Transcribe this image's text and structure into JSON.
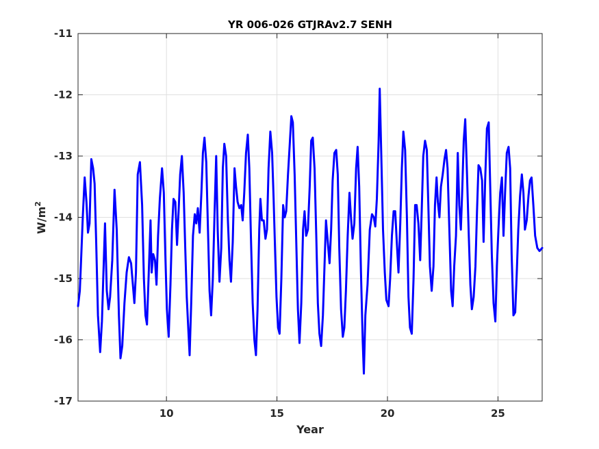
{
  "chart_data": {
    "type": "line",
    "title": "YR 006-026 GTJRAv2.7 SENH",
    "xlabel": "Year",
    "ylabel_base": "W/m",
    "ylabel_sup": "2",
    "xlim": [
      6.0,
      27.0
    ],
    "ylim": [
      -17,
      -11
    ],
    "xticks": [
      10,
      15,
      20,
      25
    ],
    "xtick_labels": [
      "10",
      "15",
      "20",
      "25"
    ],
    "yticks": [
      -17,
      -16,
      -15,
      -14,
      -13,
      -12,
      -11
    ],
    "ytick_labels": [
      "-17",
      "-16",
      "-15",
      "-14",
      "-13",
      "-12",
      "-11"
    ],
    "grid": true,
    "series_color": "#0000ff",
    "series": [
      {
        "points": [
          [
            6.0,
            -15.45
          ],
          [
            6.08,
            -15.2
          ],
          [
            6.15,
            -14.6
          ],
          [
            6.22,
            -13.95
          ],
          [
            6.3,
            -13.35
          ],
          [
            6.38,
            -13.75
          ],
          [
            6.45,
            -14.25
          ],
          [
            6.52,
            -14.1
          ],
          [
            6.6,
            -13.05
          ],
          [
            6.68,
            -13.2
          ],
          [
            6.75,
            -13.45
          ],
          [
            6.82,
            -14.4
          ],
          [
            6.9,
            -15.6
          ],
          [
            7.0,
            -16.2
          ],
          [
            7.08,
            -15.7
          ],
          [
            7.15,
            -14.9
          ],
          [
            7.22,
            -14.1
          ],
          [
            7.3,
            -15.2
          ],
          [
            7.38,
            -15.5
          ],
          [
            7.45,
            -15.3
          ],
          [
            7.55,
            -14.7
          ],
          [
            7.65,
            -13.55
          ],
          [
            7.75,
            -14.2
          ],
          [
            7.85,
            -15.6
          ],
          [
            7.92,
            -16.3
          ],
          [
            8.0,
            -16.1
          ],
          [
            8.1,
            -15.4
          ],
          [
            8.2,
            -14.9
          ],
          [
            8.3,
            -14.65
          ],
          [
            8.4,
            -14.75
          ],
          [
            8.48,
            -15.1
          ],
          [
            8.55,
            -15.4
          ],
          [
            8.62,
            -14.9
          ],
          [
            8.7,
            -13.3
          ],
          [
            8.8,
            -13.1
          ],
          [
            8.9,
            -13.8
          ],
          [
            8.98,
            -15.0
          ],
          [
            9.05,
            -15.6
          ],
          [
            9.12,
            -15.75
          ],
          [
            9.2,
            -14.9
          ],
          [
            9.28,
            -14.05
          ],
          [
            9.33,
            -14.9
          ],
          [
            9.4,
            -14.6
          ],
          [
            9.48,
            -14.7
          ],
          [
            9.55,
            -15.1
          ],
          [
            9.62,
            -14.3
          ],
          [
            9.7,
            -13.7
          ],
          [
            9.8,
            -13.2
          ],
          [
            9.88,
            -13.6
          ],
          [
            9.95,
            -14.6
          ],
          [
            10.02,
            -15.5
          ],
          [
            10.1,
            -15.95
          ],
          [
            10.18,
            -15.1
          ],
          [
            10.25,
            -14.2
          ],
          [
            10.32,
            -13.7
          ],
          [
            10.4,
            -13.75
          ],
          [
            10.48,
            -14.45
          ],
          [
            10.55,
            -13.9
          ],
          [
            10.62,
            -13.3
          ],
          [
            10.7,
            -13.0
          ],
          [
            10.78,
            -13.6
          ],
          [
            10.85,
            -14.5
          ],
          [
            10.92,
            -15.3
          ],
          [
            11.0,
            -15.9
          ],
          [
            11.05,
            -16.25
          ],
          [
            11.12,
            -15.4
          ],
          [
            11.2,
            -14.3
          ],
          [
            11.28,
            -13.95
          ],
          [
            11.35,
            -14.1
          ],
          [
            11.42,
            -13.85
          ],
          [
            11.5,
            -14.25
          ],
          [
            11.58,
            -13.6
          ],
          [
            11.65,
            -12.95
          ],
          [
            11.72,
            -12.7
          ],
          [
            11.8,
            -13.1
          ],
          [
            11.88,
            -14.2
          ],
          [
            11.95,
            -15.2
          ],
          [
            12.02,
            -15.6
          ],
          [
            12.1,
            -15.0
          ],
          [
            12.18,
            -13.9
          ],
          [
            12.25,
            -13.0
          ],
          [
            12.32,
            -14.2
          ],
          [
            12.4,
            -15.05
          ],
          [
            12.48,
            -14.5
          ],
          [
            12.55,
            -13.2
          ],
          [
            12.62,
            -12.8
          ],
          [
            12.7,
            -13.0
          ],
          [
            12.78,
            -14.05
          ],
          [
            12.85,
            -14.7
          ],
          [
            12.92,
            -15.05
          ],
          [
            13.0,
            -14.4
          ],
          [
            13.08,
            -13.2
          ],
          [
            13.15,
            -13.5
          ],
          [
            13.22,
            -13.75
          ],
          [
            13.3,
            -13.85
          ],
          [
            13.38,
            -13.8
          ],
          [
            13.45,
            -14.05
          ],
          [
            13.52,
            -13.6
          ],
          [
            13.6,
            -12.95
          ],
          [
            13.68,
            -12.65
          ],
          [
            13.75,
            -13.2
          ],
          [
            13.82,
            -14.3
          ],
          [
            13.9,
            -15.4
          ],
          [
            13.98,
            -16.0
          ],
          [
            14.05,
            -16.25
          ],
          [
            14.12,
            -15.5
          ],
          [
            14.2,
            -14.2
          ],
          [
            14.25,
            -13.7
          ],
          [
            14.32,
            -14.05
          ],
          [
            14.4,
            -14.05
          ],
          [
            14.48,
            -14.35
          ],
          [
            14.55,
            -14.2
          ],
          [
            14.62,
            -13.2
          ],
          [
            14.7,
            -12.6
          ],
          [
            14.78,
            -12.95
          ],
          [
            14.85,
            -13.7
          ],
          [
            14.92,
            -14.6
          ],
          [
            14.98,
            -15.3
          ],
          [
            15.05,
            -15.8
          ],
          [
            15.12,
            -15.9
          ],
          [
            15.2,
            -15.0
          ],
          [
            15.28,
            -13.8
          ],
          [
            15.35,
            -14.0
          ],
          [
            15.42,
            -13.9
          ],
          [
            15.5,
            -13.3
          ],
          [
            15.58,
            -12.8
          ],
          [
            15.65,
            -12.35
          ],
          [
            15.72,
            -12.45
          ],
          [
            15.8,
            -13.3
          ],
          [
            15.88,
            -14.5
          ],
          [
            15.95,
            -15.5
          ],
          [
            16.02,
            -16.05
          ],
          [
            16.1,
            -15.4
          ],
          [
            16.18,
            -14.2
          ],
          [
            16.25,
            -13.9
          ],
          [
            16.32,
            -14.3
          ],
          [
            16.4,
            -14.2
          ],
          [
            16.48,
            -13.5
          ],
          [
            16.55,
            -12.75
          ],
          [
            16.62,
            -12.7
          ],
          [
            16.7,
            -13.2
          ],
          [
            16.78,
            -14.3
          ],
          [
            16.85,
            -15.4
          ],
          [
            16.92,
            -15.9
          ],
          [
            17.0,
            -16.1
          ],
          [
            17.08,
            -15.6
          ],
          [
            17.15,
            -14.8
          ],
          [
            17.22,
            -14.05
          ],
          [
            17.3,
            -14.4
          ],
          [
            17.38,
            -14.75
          ],
          [
            17.45,
            -14.2
          ],
          [
            17.52,
            -13.4
          ],
          [
            17.6,
            -12.95
          ],
          [
            17.68,
            -12.9
          ],
          [
            17.75,
            -13.3
          ],
          [
            17.82,
            -14.5
          ],
          [
            17.9,
            -15.5
          ],
          [
            17.98,
            -15.95
          ],
          [
            18.05,
            -15.8
          ],
          [
            18.12,
            -15.2
          ],
          [
            18.2,
            -14.3
          ],
          [
            18.28,
            -13.6
          ],
          [
            18.35,
            -14.0
          ],
          [
            18.42,
            -14.35
          ],
          [
            18.5,
            -14.1
          ],
          [
            18.58,
            -13.2
          ],
          [
            18.65,
            -12.85
          ],
          [
            18.72,
            -13.5
          ],
          [
            18.8,
            -14.9
          ],
          [
            18.88,
            -16.0
          ],
          [
            18.93,
            -16.55
          ],
          [
            19.0,
            -15.6
          ],
          [
            19.1,
            -15.1
          ],
          [
            19.2,
            -14.2
          ],
          [
            19.3,
            -13.95
          ],
          [
            19.38,
            -14.0
          ],
          [
            19.45,
            -14.15
          ],
          [
            19.52,
            -13.7
          ],
          [
            19.6,
            -12.75
          ],
          [
            19.65,
            -11.9
          ],
          [
            19.72,
            -13.0
          ],
          [
            19.8,
            -14.2
          ],
          [
            19.88,
            -14.9
          ],
          [
            19.95,
            -15.35
          ],
          [
            20.05,
            -15.45
          ],
          [
            20.12,
            -15.0
          ],
          [
            20.2,
            -14.3
          ],
          [
            20.28,
            -13.9
          ],
          [
            20.35,
            -13.9
          ],
          [
            20.42,
            -14.4
          ],
          [
            20.5,
            -14.9
          ],
          [
            20.58,
            -14.1
          ],
          [
            20.65,
            -13.2
          ],
          [
            20.72,
            -12.6
          ],
          [
            20.8,
            -12.9
          ],
          [
            20.88,
            -14.0
          ],
          [
            20.95,
            -15.3
          ],
          [
            21.02,
            -15.8
          ],
          [
            21.1,
            -15.9
          ],
          [
            21.18,
            -15.0
          ],
          [
            21.25,
            -13.8
          ],
          [
            21.32,
            -13.8
          ],
          [
            21.4,
            -14.1
          ],
          [
            21.48,
            -14.7
          ],
          [
            21.55,
            -13.9
          ],
          [
            21.62,
            -13.0
          ],
          [
            21.7,
            -12.75
          ],
          [
            21.78,
            -12.9
          ],
          [
            21.85,
            -13.8
          ],
          [
            21.92,
            -14.8
          ],
          [
            22.0,
            -15.2
          ],
          [
            22.08,
            -14.8
          ],
          [
            22.15,
            -13.8
          ],
          [
            22.22,
            -13.35
          ],
          [
            22.28,
            -13.75
          ],
          [
            22.35,
            -14.0
          ],
          [
            22.42,
            -13.5
          ],
          [
            22.5,
            -13.3
          ],
          [
            22.58,
            -13.05
          ],
          [
            22.65,
            -12.9
          ],
          [
            22.72,
            -13.2
          ],
          [
            22.8,
            -14.2
          ],
          [
            22.88,
            -15.2
          ],
          [
            22.95,
            -15.45
          ],
          [
            23.02,
            -14.8
          ],
          [
            23.1,
            -14.3
          ],
          [
            23.18,
            -12.95
          ],
          [
            23.25,
            -13.8
          ],
          [
            23.32,
            -14.2
          ],
          [
            23.38,
            -13.6
          ],
          [
            23.45,
            -12.75
          ],
          [
            23.52,
            -12.4
          ],
          [
            23.6,
            -13.3
          ],
          [
            23.68,
            -14.3
          ],
          [
            23.75,
            -15.1
          ],
          [
            23.82,
            -15.5
          ],
          [
            23.9,
            -15.3
          ],
          [
            23.98,
            -14.8
          ],
          [
            24.05,
            -13.9
          ],
          [
            24.12,
            -13.15
          ],
          [
            24.2,
            -13.2
          ],
          [
            24.28,
            -13.4
          ],
          [
            24.35,
            -14.4
          ],
          [
            24.42,
            -13.4
          ],
          [
            24.5,
            -12.55
          ],
          [
            24.58,
            -12.45
          ],
          [
            24.65,
            -13.5
          ],
          [
            24.72,
            -14.6
          ],
          [
            24.8,
            -15.4
          ],
          [
            24.88,
            -15.7
          ],
          [
            24.95,
            -14.8
          ],
          [
            25.02,
            -14.2
          ],
          [
            25.1,
            -13.6
          ],
          [
            25.18,
            -13.35
          ],
          [
            25.25,
            -14.3
          ],
          [
            25.32,
            -13.6
          ],
          [
            25.4,
            -12.95
          ],
          [
            25.48,
            -12.85
          ],
          [
            25.55,
            -13.2
          ],
          [
            25.62,
            -14.6
          ],
          [
            25.7,
            -15.6
          ],
          [
            25.78,
            -15.55
          ],
          [
            25.85,
            -14.9
          ],
          [
            25.92,
            -14.2
          ],
          [
            26.0,
            -13.65
          ],
          [
            26.08,
            -13.3
          ],
          [
            26.15,
            -13.6
          ],
          [
            26.22,
            -14.2
          ],
          [
            26.3,
            -14.05
          ],
          [
            26.38,
            -13.65
          ],
          [
            26.45,
            -13.4
          ],
          [
            26.52,
            -13.35
          ],
          [
            26.6,
            -13.8
          ],
          [
            26.68,
            -14.3
          ],
          [
            26.78,
            -14.5
          ],
          [
            26.88,
            -14.55
          ],
          [
            27.0,
            -14.5
          ]
        ]
      }
    ]
  }
}
